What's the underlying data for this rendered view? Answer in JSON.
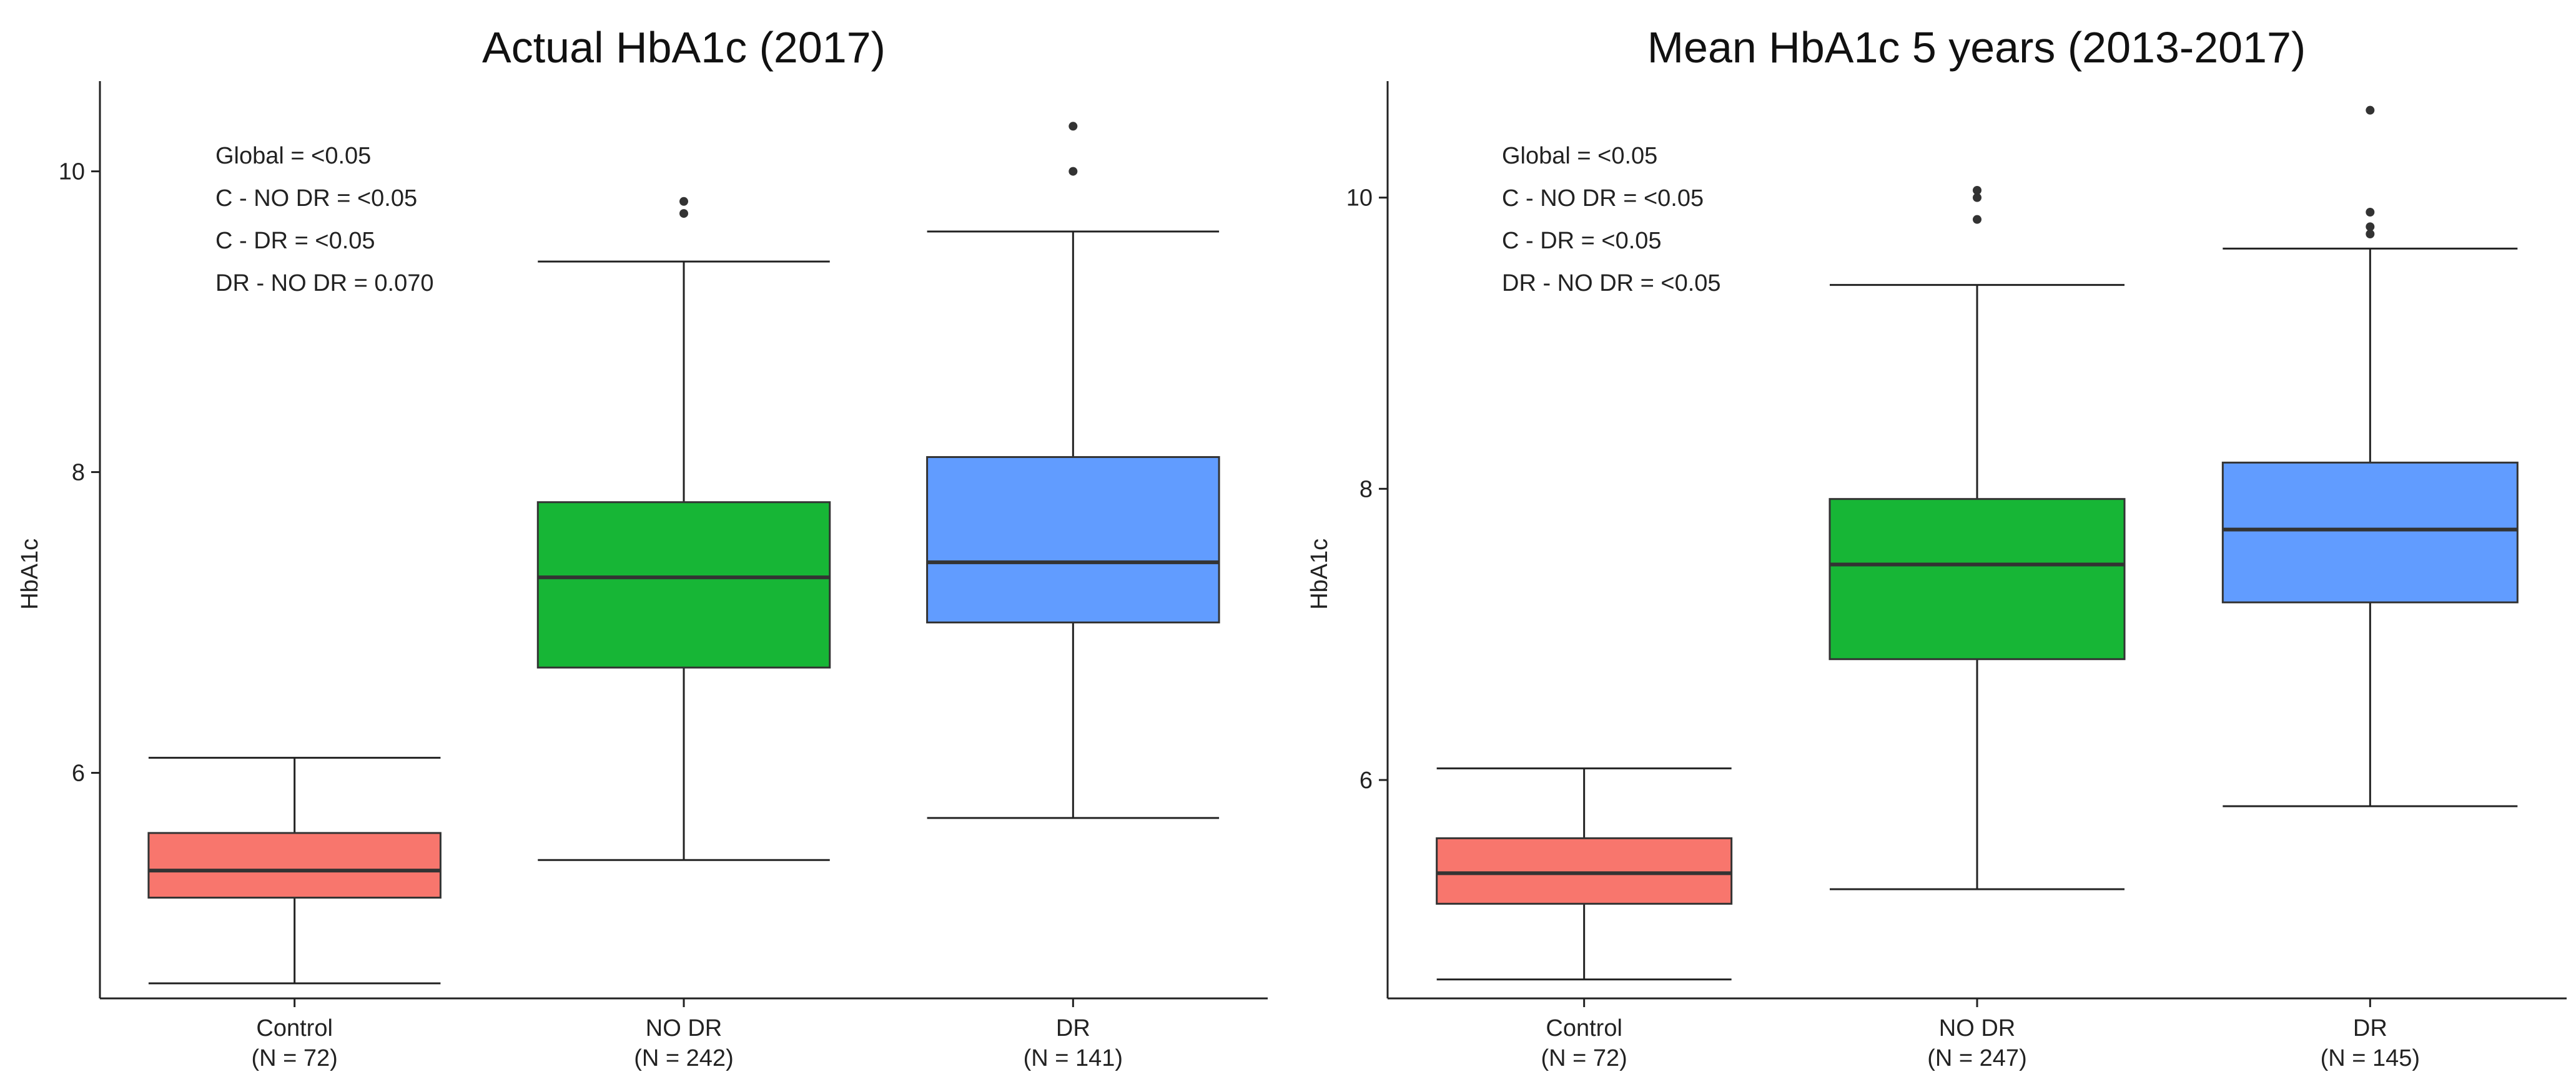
{
  "chart_data": [
    {
      "type": "box",
      "title": "Actual HbA1c (2017)",
      "ylabel": "HbA1c",
      "xlabel": "",
      "ylim": [
        4.5,
        10.6
      ],
      "yticks": [
        6,
        8,
        10
      ],
      "categories": [
        {
          "label": "Control",
          "n_label": "(N = 72)"
        },
        {
          "label": "NO DR",
          "n_label": "(N = 242)"
        },
        {
          "label": "DR",
          "n_label": "(N = 141)"
        }
      ],
      "boxes": [
        {
          "name": "Control",
          "color": "#F8766D",
          "whisker_low": 4.6,
          "q1": 5.17,
          "median": 5.35,
          "q3": 5.6,
          "whisker_high": 6.1,
          "outliers": []
        },
        {
          "name": "NO DR",
          "color": "#17B636",
          "whisker_low": 5.42,
          "q1": 6.7,
          "median": 7.3,
          "q3": 7.8,
          "whisker_high": 9.4,
          "outliers": [
            9.72,
            9.8
          ]
        },
        {
          "name": "DR",
          "color": "#619CFF",
          "whisker_low": 5.7,
          "q1": 7.0,
          "median": 7.4,
          "q3": 8.1,
          "whisker_high": 9.6,
          "outliers": [
            10.0,
            10.3
          ]
        }
      ],
      "annotations": [
        "Global = <0.05",
        "C - NO DR = <0.05",
        "C - DR = <0.05",
        "DR - NO DR = 0.070"
      ]
    },
    {
      "type": "box",
      "title": "Mean HbA1c 5 years (2013-2017)",
      "ylabel": "HbA1c",
      "xlabel": "",
      "ylim": [
        4.5,
        10.8
      ],
      "yticks": [
        6,
        8,
        10
      ],
      "categories": [
        {
          "label": "Control",
          "n_label": "(N = 72)"
        },
        {
          "label": "NO DR",
          "n_label": "(N = 247)"
        },
        {
          "label": "DR",
          "n_label": "(N = 145)"
        }
      ],
      "boxes": [
        {
          "name": "Control",
          "color": "#F8766D",
          "whisker_low": 4.63,
          "q1": 5.15,
          "median": 5.36,
          "q3": 5.6,
          "whisker_high": 6.08,
          "outliers": []
        },
        {
          "name": "NO DR",
          "color": "#17B636",
          "whisker_low": 5.25,
          "q1": 6.83,
          "median": 7.48,
          "q3": 7.93,
          "whisker_high": 9.4,
          "outliers": [
            9.85,
            10.0,
            10.05
          ]
        },
        {
          "name": "DR",
          "color": "#619CFF",
          "whisker_low": 5.82,
          "q1": 7.22,
          "median": 7.72,
          "q3": 8.18,
          "whisker_high": 9.65,
          "outliers": [
            9.75,
            9.8,
            9.9,
            10.6
          ]
        }
      ],
      "annotations": [
        "Global = <0.05",
        "C - NO DR = <0.05",
        "C - DR = <0.05",
        "DR - NO DR = <0.05"
      ]
    }
  ]
}
